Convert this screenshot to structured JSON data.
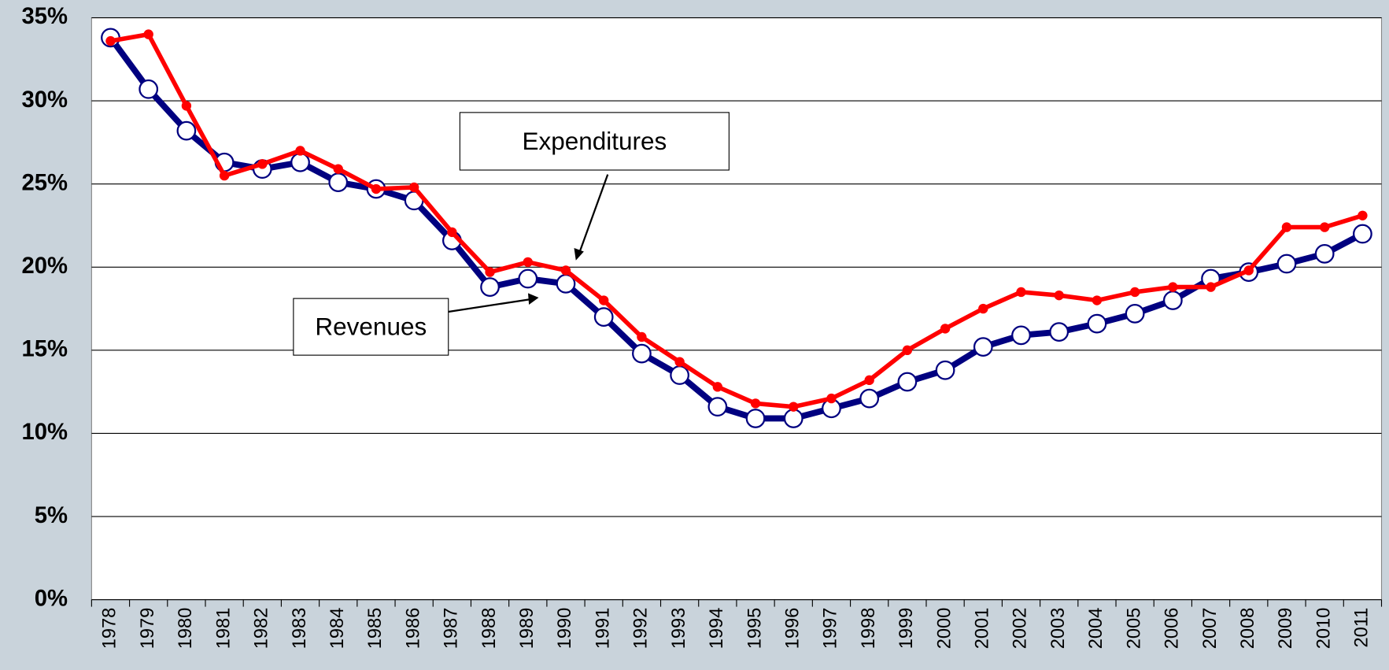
{
  "chart_data": {
    "type": "line",
    "categories": [
      "1978",
      "1979",
      "1980",
      "1981",
      "1982",
      "1983",
      "1984",
      "1985",
      "1986",
      "1987",
      "1988",
      "1989",
      "1990",
      "1991",
      "1992",
      "1993",
      "1994",
      "1995",
      "1996",
      "1997",
      "1998",
      "1999",
      "2000",
      "2001",
      "2002",
      "2003",
      "2004",
      "2005",
      "2006",
      "2007",
      "2008",
      "2009",
      "2010",
      "2011"
    ],
    "series": [
      {
        "name": "Revenues",
        "color": "#000080",
        "values": [
          33.8,
          30.7,
          28.2,
          26.3,
          25.9,
          26.3,
          25.1,
          24.7,
          24.0,
          21.6,
          18.8,
          19.3,
          19.0,
          17.0,
          14.8,
          13.5,
          11.6,
          10.9,
          10.9,
          11.5,
          12.1,
          13.1,
          13.8,
          15.2,
          15.9,
          16.1,
          16.6,
          17.2,
          18.0,
          19.3,
          19.7,
          20.2,
          20.8,
          22.0
        ]
      },
      {
        "name": "Expenditures",
        "color": "#ff0000",
        "values": [
          33.6,
          34.0,
          29.7,
          25.5,
          26.2,
          27.0,
          25.9,
          24.7,
          24.8,
          22.1,
          19.7,
          20.3,
          19.8,
          18.0,
          15.8,
          14.3,
          12.8,
          11.8,
          11.6,
          12.1,
          13.2,
          15.0,
          16.3,
          17.5,
          18.5,
          18.3,
          18.0,
          18.5,
          18.8,
          18.8,
          19.8,
          22.4,
          22.4,
          23.1
        ]
      }
    ],
    "annotations": [
      "Expenditures",
      "Revenues"
    ],
    "ylim": [
      0,
      35
    ],
    "yticks": [
      {
        "value": 0,
        "label": "0%"
      },
      {
        "value": 5,
        "label": "5%"
      },
      {
        "value": 10,
        "label": "10%"
      },
      {
        "value": 15,
        "label": "15%"
      },
      {
        "value": 20,
        "label": "20%"
      },
      {
        "value": 25,
        "label": "25%"
      },
      {
        "value": 30,
        "label": "30%"
      },
      {
        "value": 35,
        "label": "35%"
      }
    ],
    "grid": true
  }
}
